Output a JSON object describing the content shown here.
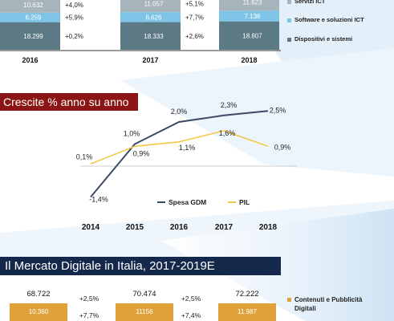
{
  "chart_data": [
    {
      "type": "bar",
      "stacked": true,
      "categories": [
        "2016",
        "2017",
        "2018"
      ],
      "series": [
        {
          "name": "Dispositivi e sistemi",
          "values": [
            18299,
            18333,
            18807
          ],
          "growth": [
            "+0,2%",
            "+2,6%"
          ],
          "color": "#5b7a86"
        },
        {
          "name": "Software e soluzioni ICT",
          "values": [
            6259,
            6626,
            7136
          ],
          "growth": [
            "+5,9%",
            "+7,7%"
          ],
          "color": "#7ec4e6"
        },
        {
          "name": "Servizi ICT",
          "values": [
            10632,
            11057,
            11623
          ],
          "growth": [
            "+4,0%",
            "+5,1%"
          ],
          "color": "#a8b4bb"
        }
      ],
      "value_labels": [
        [
          "18.299",
          "18.333",
          "18.807"
        ],
        [
          "6.259",
          "6.626",
          "7.136"
        ],
        [
          "10.632",
          "11.057",
          "11.623"
        ]
      ],
      "legend": [
        "Servizi ICT",
        "Software e soluzioni ICT",
        "Dispositivi e sistemi"
      ]
    },
    {
      "type": "line",
      "title": "Crescite % anno su anno",
      "x": [
        "2014",
        "2015",
        "2016",
        "2017",
        "2018"
      ],
      "series": [
        {
          "name": "Spesa GDM",
          "values": [
            -1.4,
            1.0,
            2.0,
            2.3,
            2.5
          ],
          "labels": [
            "-1,4%",
            "1,0%",
            "2,0%",
            "2,3%",
            "2,5%"
          ],
          "color": "#3c4a66"
        },
        {
          "name": "PIL",
          "values": [
            0.1,
            0.9,
            1.1,
            1.6,
            0.9
          ],
          "labels": [
            "0,1%",
            "0,9%",
            "1,1%",
            "1,6%",
            "0,9%"
          ],
          "color": "#f2c84b"
        }
      ],
      "ylim": [
        -1.6,
        2.8
      ],
      "legend_position": "bottom"
    },
    {
      "type": "bar",
      "stacked": true,
      "title": "Il Mercato Digitale in Italia, 2017-2019E",
      "totals": [
        "68.722",
        "70.474",
        "72.222"
      ],
      "total_growth": [
        "+2,5%",
        "+2,5%"
      ],
      "series": [
        {
          "name": "Contenuti e Pubblicità Digitali",
          "value_labels": [
            "10.360",
            "11156",
            "11.987"
          ],
          "growth": [
            "+7,7%",
            "+7,4%"
          ],
          "color": "#e0a33c"
        }
      ]
    }
  ]
}
